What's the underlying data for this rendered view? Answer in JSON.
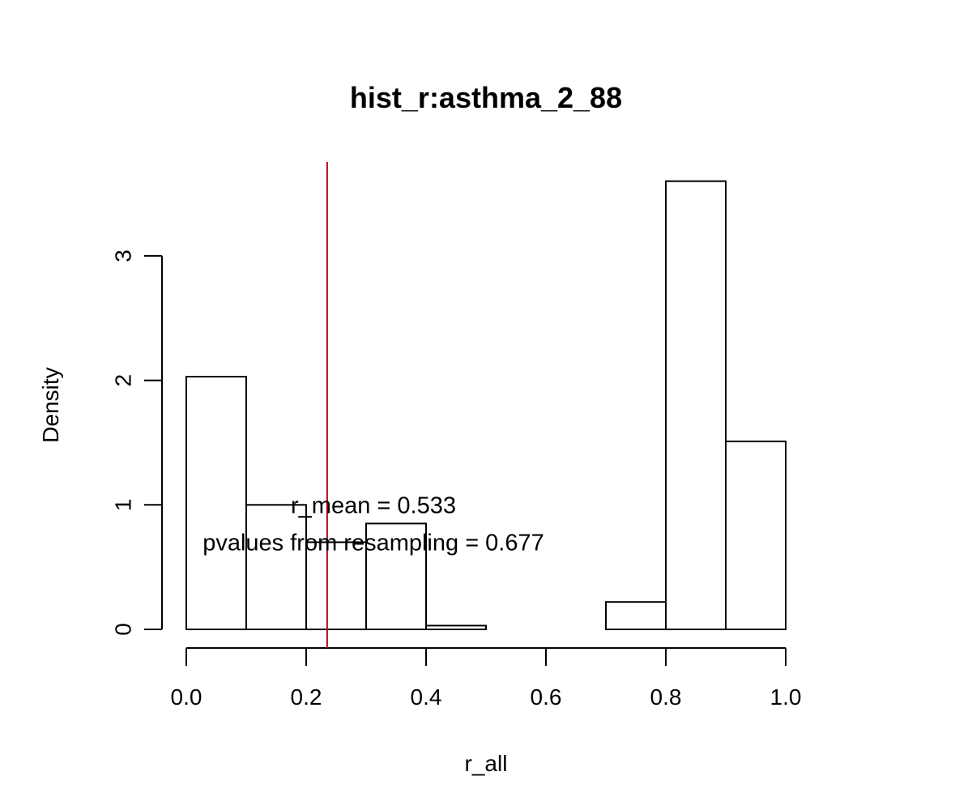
{
  "chart_data": {
    "type": "bar",
    "title": "hist_r:asthma_2_88",
    "xlabel": "r_all",
    "ylabel": "Density",
    "xlim": [
      0,
      1
    ],
    "ylim": [
      0,
      3.6
    ],
    "x_ticks": [
      "0.0",
      "0.2",
      "0.4",
      "0.6",
      "0.8",
      "1.0"
    ],
    "y_ticks": [
      "0",
      "1",
      "2",
      "3"
    ],
    "bins": [
      {
        "start": 0.0,
        "end": 0.1,
        "density": 2.03
      },
      {
        "start": 0.1,
        "end": 0.2,
        "density": 1.0
      },
      {
        "start": 0.2,
        "end": 0.3,
        "density": 0.7
      },
      {
        "start": 0.3,
        "end": 0.4,
        "density": 0.85
      },
      {
        "start": 0.4,
        "end": 0.5,
        "density": 0.03
      },
      {
        "start": 0.5,
        "end": 0.6,
        "density": 0.0
      },
      {
        "start": 0.6,
        "end": 0.7,
        "density": 0.0
      },
      {
        "start": 0.7,
        "end": 0.8,
        "density": 0.22
      },
      {
        "start": 0.8,
        "end": 0.9,
        "density": 3.6
      },
      {
        "start": 0.9,
        "end": 1.0,
        "density": 1.51
      }
    ],
    "reference_line": {
      "x": 0.235,
      "color": "#cc0000"
    },
    "annotations": [
      {
        "text": "r_mean = 0.533",
        "x": 0.3,
        "y": 1.0
      },
      {
        "text": "pvalues from resampling = 0.677",
        "x": 0.3,
        "y": 0.7
      }
    ],
    "grid": false,
    "legend": "none"
  }
}
